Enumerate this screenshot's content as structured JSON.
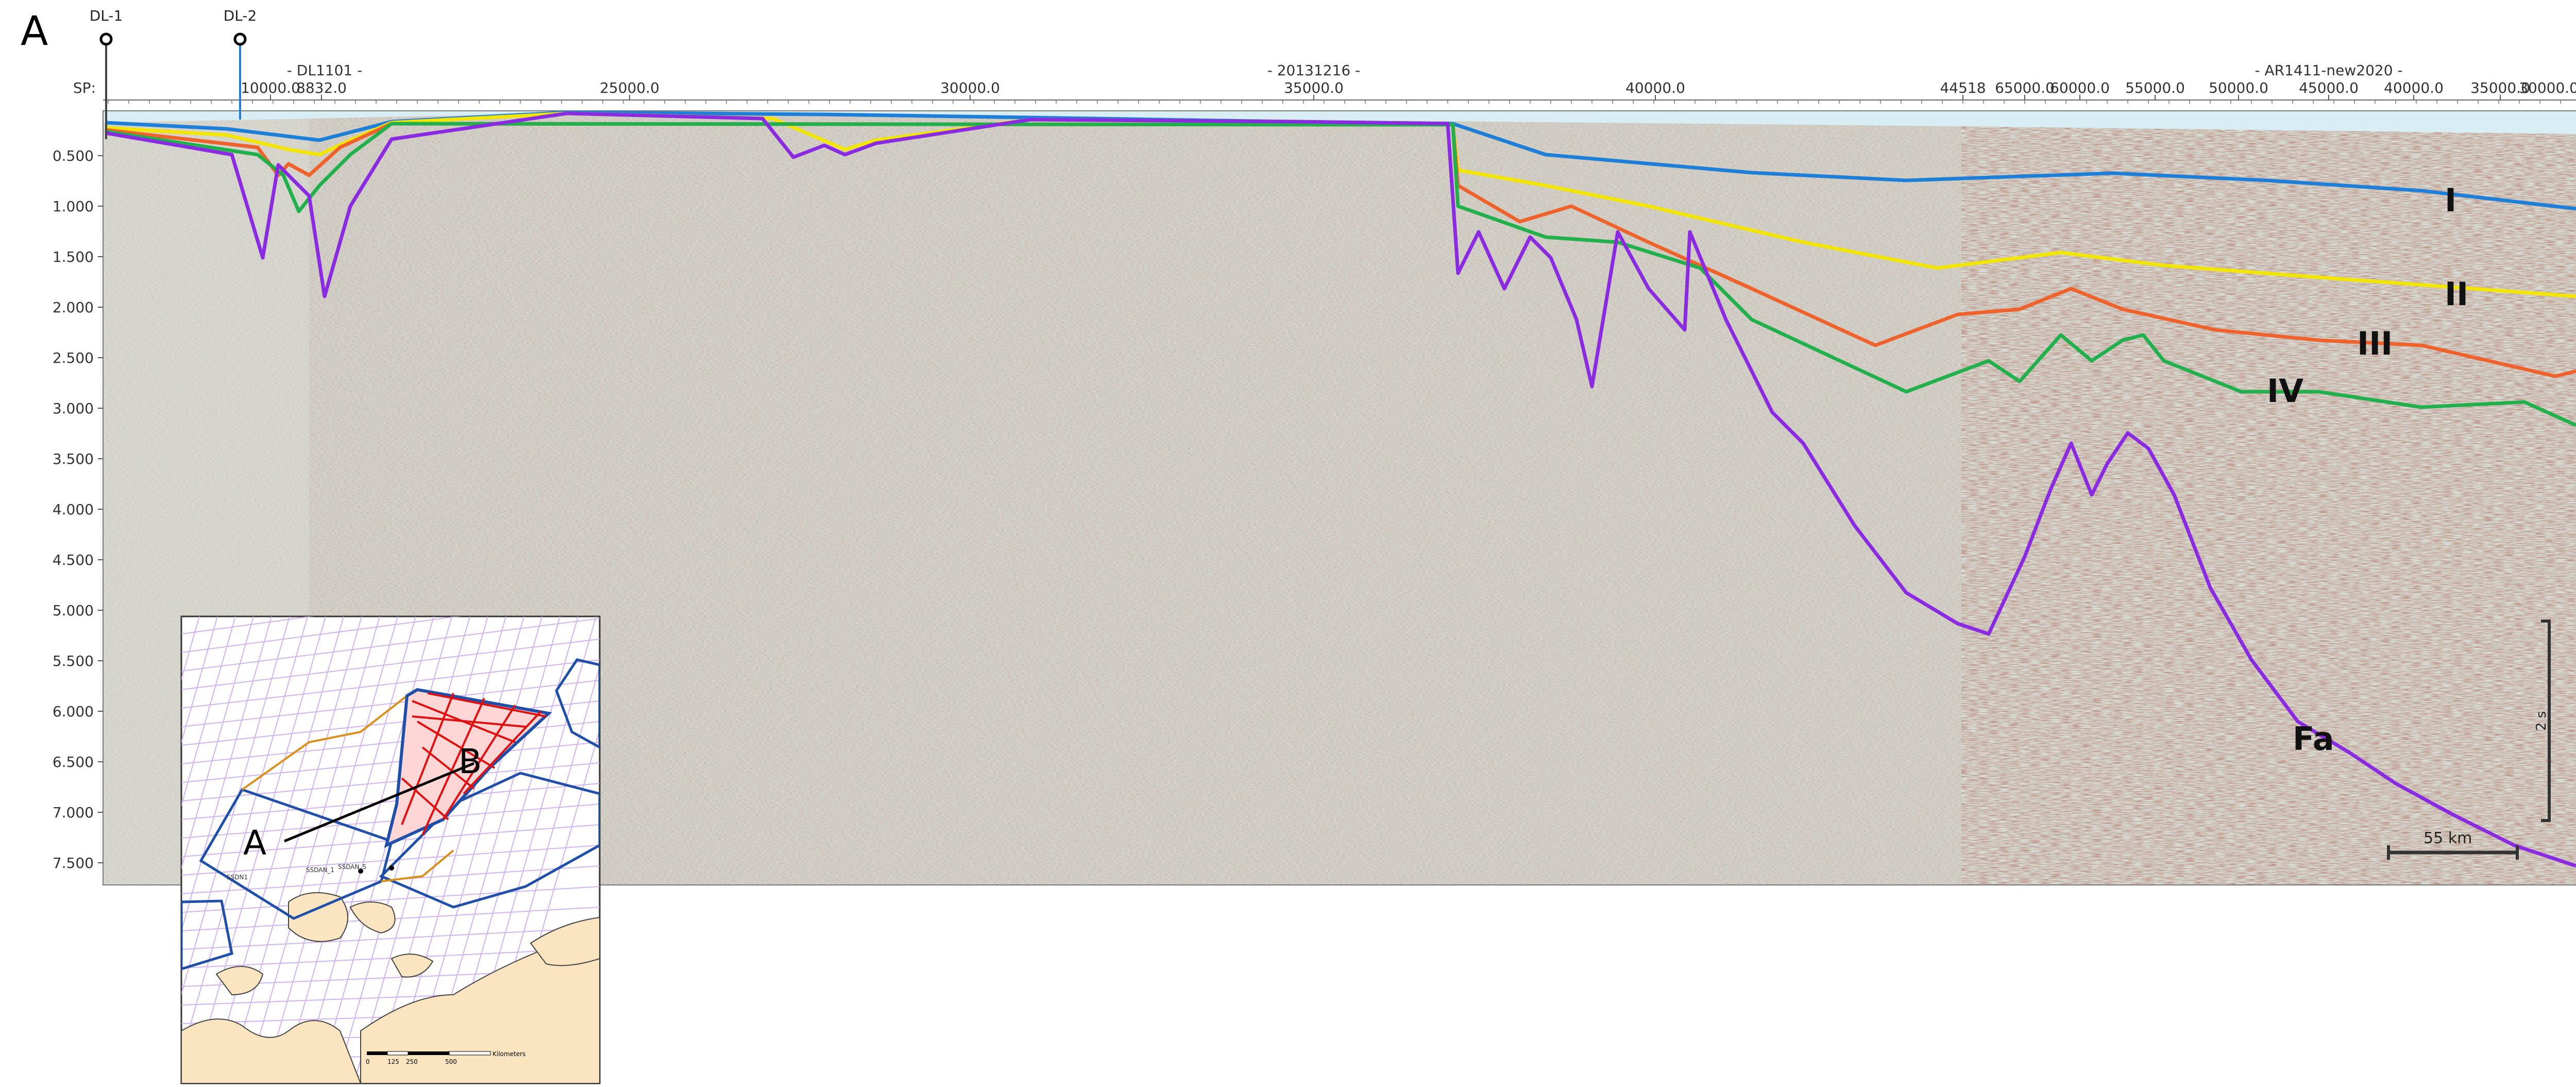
{
  "labels": {
    "left_end": "A",
    "right_end": "B"
  },
  "wells": [
    {
      "name": "DL-1"
    },
    {
      "name": "DL-2"
    }
  ],
  "sp_label": "SP:",
  "survey_lines": [
    "- DL1101 -",
    "- 20131216 -",
    "- AR1411-new2020 -"
  ],
  "sp_ticks": [
    "10000.0",
    "8832.0",
    "25000.0",
    "30000.0",
    "35000.0",
    "40000.0",
    "44518",
    "65000.0",
    "60000.0",
    "55000.0",
    "50000.0",
    "45000.0",
    "40000.0",
    "35000.0",
    "30000.0"
  ],
  "twt_ticks": [
    "0.500",
    "1.000",
    "1.500",
    "2.000",
    "2.500",
    "3.000",
    "3.500",
    "4.000",
    "4.500",
    "5.000",
    "5.500",
    "6.000",
    "6.500",
    "7.000",
    "7.500"
  ],
  "horizons": [
    {
      "label": "I",
      "color": "#1e7fd8"
    },
    {
      "label": "II",
      "color": "#f2e600"
    },
    {
      "label": "III",
      "color": "#f0622c"
    },
    {
      "label": "IV",
      "color": "#21b04b"
    },
    {
      "label": "Fa",
      "color": "#8a2be2"
    }
  ],
  "scale": {
    "horizontal": "55 km",
    "vertical": "2 s"
  },
  "inset": {
    "profile_start": "A",
    "profile_end": "B",
    "well_labels": [
      "SSDN1",
      "SSDAN_1",
      "SSDAN_5"
    ],
    "scale_ticks": [
      "0",
      "125",
      "250",
      "500"
    ],
    "scale_unit": "Kilometers"
  }
}
